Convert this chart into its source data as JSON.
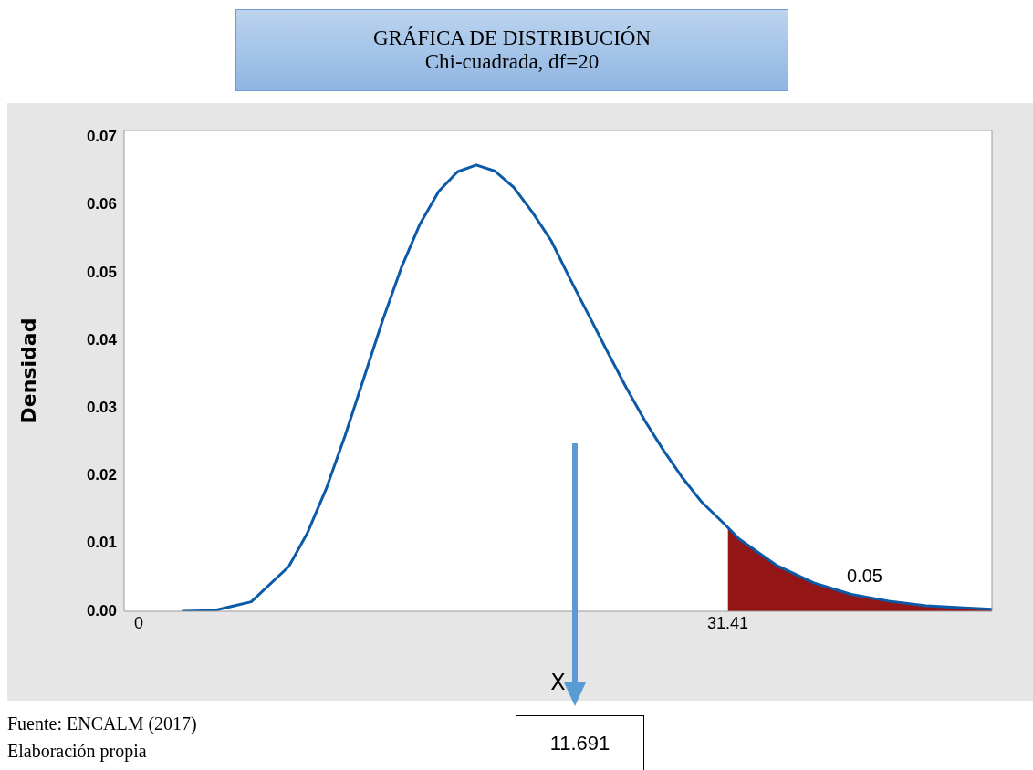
{
  "chart_data": {
    "type": "line",
    "title": "GRÁFICA DE DISTRIBUCIÓN",
    "subtitle": "Chi-cuadrada, df=20",
    "xlabel": "X",
    "ylabel": "Densidad",
    "series": [
      {
        "type": "area",
        "color": "#931515",
        "x": [
          31.41,
          32,
          34,
          36,
          38,
          40,
          42,
          44,
          45.5
        ],
        "values": [
          0.0124,
          0.0107,
          0.0068,
          0.0042,
          0.0025,
          0.0015,
          0.0008,
          0.0005,
          0.0003
        ]
      },
      {
        "color": "#0b5aa8",
        "x": [
          2.3,
          4,
          6,
          8,
          9,
          10,
          11,
          12,
          13,
          14,
          15,
          16,
          17,
          18,
          19,
          20,
          21,
          22,
          23,
          24,
          25,
          26,
          27,
          28,
          29,
          30,
          31.41,
          32,
          34,
          36,
          38,
          40,
          42,
          44,
          45.5
        ],
        "values": [
          0,
          0.0001,
          0.0014,
          0.0066,
          0.0116,
          0.0181,
          0.0259,
          0.0344,
          0.0429,
          0.0507,
          0.0572,
          0.062,
          0.0649,
          0.0659,
          0.065,
          0.0626,
          0.0589,
          0.0547,
          0.0491,
          0.0437,
          0.0383,
          0.033,
          0.0281,
          0.0237,
          0.0197,
          0.0162,
          0.0124,
          0.0107,
          0.0068,
          0.0042,
          0.0025,
          0.0015,
          0.0008,
          0.0005,
          0.0003
        ]
      }
    ],
    "xlim": [
      -0.78,
      45.5
    ],
    "xticks": [
      0,
      31.41
    ],
    "ylim": [
      0,
      0.071
    ],
    "yticks": [
      {
        "value": 0,
        "label": "0.00"
      },
      {
        "value": 0.01,
        "label": "0.01"
      },
      {
        "value": 0.02,
        "label": "0.02"
      },
      {
        "value": 0.03,
        "label": "0.03"
      },
      {
        "value": 0.04,
        "label": "0.04"
      },
      {
        "value": 0.05,
        "label": "0.05"
      },
      {
        "value": 0.06,
        "label": "0.06"
      },
      {
        "value": 0.07,
        "label": "0.07"
      }
    ],
    "grid": false,
    "legend": false,
    "marker": "none",
    "line_style": "solid",
    "annotations": [
      "Fuente: ENCALM (2017)",
      "Elaboración propia",
      "11.691",
      "0.05"
    ]
  }
}
